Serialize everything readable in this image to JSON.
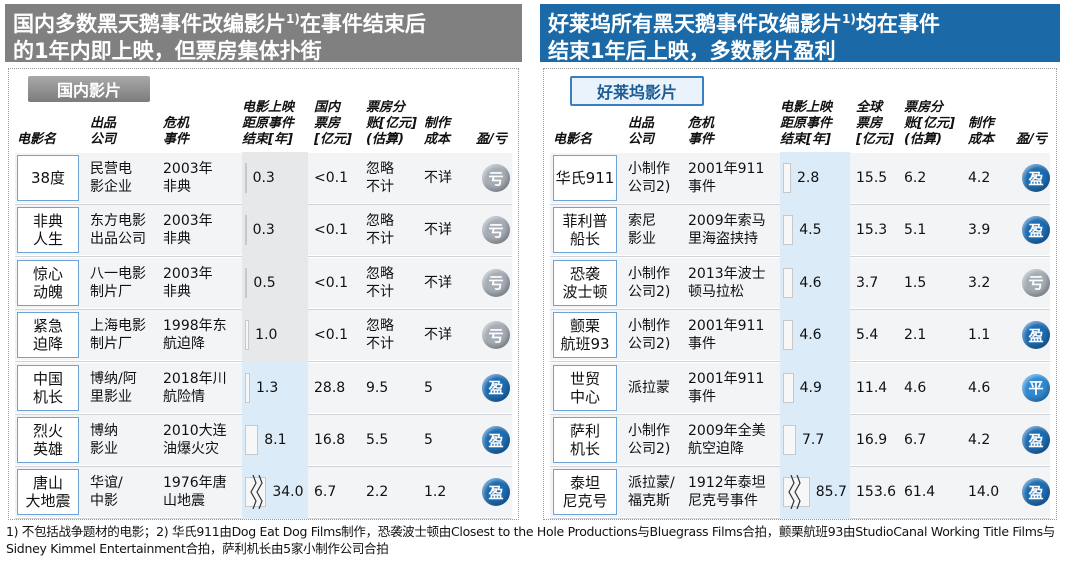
{
  "panels": [
    {
      "title": [
        "国内多数黑天鹅事件改编影片",
        "1)",
        "在事件结束后的1年内即上映，但票房集体扑街"
      ],
      "section": "国内影片",
      "headers": [
        [
          "电影名"
        ],
        [
          "出品",
          "公司"
        ],
        [
          "危机",
          "事件"
        ],
        [
          "电影上映",
          "距原事件",
          "结束[年]"
        ],
        [
          "国内",
          "票房",
          "[亿元]"
        ],
        [
          "票房分",
          "账[亿元]",
          "(估算)"
        ],
        [
          "制作",
          "成本"
        ],
        [
          "盈/亏"
        ]
      ],
      "rows": [
        [
          [
            "38度"
          ],
          [
            "民营电",
            "影企业"
          ],
          [
            "2003年",
            "非典"
          ],
          "0.3",
          "<0.1",
          [
            "忽略",
            "不计"
          ],
          "不详",
          "亏"
        ],
        [
          [
            "非典",
            "人生"
          ],
          [
            "东方电影",
            "出品公司"
          ],
          [
            "2003年",
            "非典"
          ],
          "0.3",
          "<0.1",
          [
            "忽略",
            "不计"
          ],
          "不详",
          "亏"
        ],
        [
          [
            "惊心",
            "动魄"
          ],
          [
            "八一电影",
            "制片厂"
          ],
          [
            "2003年",
            "非典"
          ],
          "0.5",
          "<0.1",
          [
            "忽略",
            "不计"
          ],
          "不详",
          "亏"
        ],
        [
          [
            "紧急",
            "迫降"
          ],
          [
            "上海电影",
            "制片厂"
          ],
          [
            "1998年东",
            "航迫降"
          ],
          "1.0",
          "<0.1",
          [
            "忽略",
            "不计"
          ],
          "不详",
          "亏"
        ],
        [
          [
            "中国",
            "机长"
          ],
          [
            "博纳/阿",
            "里影业"
          ],
          [
            "2018年川",
            "航险情"
          ],
          "1.3",
          "28.8",
          [
            "9.5"
          ],
          "5",
          "盈"
        ],
        [
          [
            "烈火",
            "英雄"
          ],
          [
            "博纳",
            "影业"
          ],
          [
            "2010大连",
            "油爆火灾"
          ],
          "8.1",
          "16.8",
          [
            "5.5"
          ],
          "5",
          "盈"
        ],
        [
          [
            "唐山",
            "大地震"
          ],
          [
            "华谊/",
            "中影"
          ],
          [
            "1976年唐",
            "山地震"
          ],
          "34.0",
          "6.7",
          [
            "2.2"
          ],
          "1.2",
          "盈"
        ]
      ]
    },
    {
      "title": [
        "好莱坞所有黑天鹅事件改编影片",
        "1)",
        "均在事件结束1年后上映，多数影片盈利"
      ],
      "section": "好莱坞影片",
      "headers": [
        [
          "电影名"
        ],
        [
          "出品",
          "公司"
        ],
        [
          "危机",
          "事件"
        ],
        [
          "电影上映",
          "距原事件",
          "结束[年]"
        ],
        [
          "全球",
          "票房",
          "[亿元]"
        ],
        [
          "票房分",
          "账[亿元]",
          "(估算)"
        ],
        [
          "制作",
          "成本"
        ],
        [
          "盈/亏"
        ]
      ],
      "rows": [
        [
          [
            "华氏911"
          ],
          [
            "小制作",
            "公司2)"
          ],
          [
            "2001年911",
            "事件"
          ],
          "2.8",
          "15.5",
          [
            "6.2"
          ],
          "4.2",
          "盈"
        ],
        [
          [
            "菲利普",
            "船长"
          ],
          [
            "索尼",
            "影业"
          ],
          [
            "2009年索马",
            "里海盗挟持"
          ],
          "4.5",
          "15.3",
          [
            "5.1"
          ],
          "3.9",
          "盈"
        ],
        [
          [
            "恐袭",
            "波士顿"
          ],
          [
            "小制作",
            "公司2)"
          ],
          [
            "2013年波士",
            "顿马拉松"
          ],
          "4.6",
          "3.7",
          [
            "1.5"
          ],
          "3.2",
          "亏"
        ],
        [
          [
            "颤栗",
            "航班93"
          ],
          [
            "小制作",
            "公司2)"
          ],
          [
            "2001年911",
            "事件"
          ],
          "4.6",
          "5.4",
          [
            "2.1"
          ],
          "1.1",
          "盈"
        ],
        [
          [
            "世贸",
            "中心"
          ],
          [
            "派拉蒙"
          ],
          [
            "2001年911",
            "事件"
          ],
          "4.9",
          "11.4",
          [
            "4.6"
          ],
          "4.6",
          "平"
        ],
        [
          [
            "萨利",
            "机长"
          ],
          [
            "小制作",
            "公司2)"
          ],
          [
            "2009年全美",
            "航空迫降"
          ],
          "7.7",
          "16.9",
          [
            "6.7"
          ],
          "4.2",
          "盈"
        ],
        [
          [
            "泰坦",
            "尼克号"
          ],
          [
            "派拉蒙/",
            "福克斯"
          ],
          [
            "1912年泰坦",
            "尼克号事件"
          ],
          "85.7",
          "153.6",
          [
            "61.4"
          ],
          "14.0",
          "盈"
        ]
      ]
    }
  ],
  "icon_colors": {
    "亏": "#a4acb4",
    "盈": "#1d6cb2",
    "平": "#2f8ad3"
  },
  "footnote": "1) 不包括战争题材的电影；2) 华氏911由Dog Eat Dog Films制作，恐袭波士顿由Closest to the Hole Productions与Bluegrass Films合拍，颤栗航班93由StudioCanal Working Title Films与Sidney Kimmel Entertainment合拍，萨利机长由5家小制作公司合拍"
}
